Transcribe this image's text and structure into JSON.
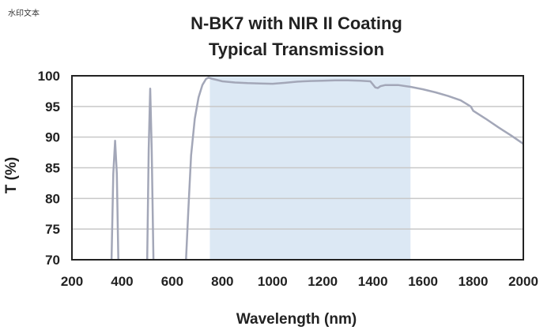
{
  "watermark": "水印文本",
  "chart_data": {
    "type": "line",
    "title_line1": "N-BK7 with NIR II Coating",
    "title_line2": "Typical Transmission",
    "xlabel": "Wavelength (nm)",
    "ylabel": "T (%)",
    "xlim": [
      200,
      2000
    ],
    "ylim": [
      70,
      100
    ],
    "x_ticks": [
      200,
      400,
      600,
      800,
      1000,
      1200,
      1400,
      1600,
      1800,
      2000
    ],
    "y_ticks": [
      70,
      75,
      80,
      85,
      90,
      95,
      100
    ],
    "grid": true,
    "band": {
      "x_start": 750,
      "x_end": 1550,
      "color": "#dce8f4"
    },
    "line_color": "#a3a7b8",
    "series": [
      {
        "segments": [
          [
            [
              358,
              70
            ],
            [
              365,
              84
            ],
            [
              372,
              89.4
            ],
            [
              379,
              84
            ],
            [
              385,
              70
            ]
          ],
          [
            [
              500,
              70
            ],
            [
              506,
              88
            ],
            [
              512,
              97.9
            ],
            [
              518,
              88
            ],
            [
              525,
              70
            ]
          ],
          [
            [
              655,
              70
            ],
            [
              664,
              78
            ],
            [
              675,
              87
            ],
            [
              690,
              93
            ],
            [
              705,
              96.5
            ],
            [
              720,
              98.5
            ],
            [
              735,
              99.5
            ],
            [
              745,
              99.7
            ],
            [
              760,
              99.5
            ],
            [
              780,
              99.3
            ],
            [
              800,
              99.1
            ],
            [
              850,
              98.9
            ],
            [
              900,
              98.8
            ],
            [
              950,
              98.75
            ],
            [
              1000,
              98.7
            ],
            [
              1050,
              98.85
            ],
            [
              1100,
              99.05
            ],
            [
              1150,
              99.15
            ],
            [
              1200,
              99.2
            ],
            [
              1250,
              99.25
            ],
            [
              1300,
              99.25
            ],
            [
              1350,
              99.2
            ],
            [
              1390,
              99.1
            ],
            [
              1400,
              98.6
            ],
            [
              1410,
              98.1
            ],
            [
              1420,
              98.0
            ],
            [
              1430,
              98.3
            ],
            [
              1450,
              98.5
            ],
            [
              1500,
              98.5
            ],
            [
              1550,
              98.2
            ],
            [
              1600,
              97.8
            ],
            [
              1650,
              97.3
            ],
            [
              1700,
              96.7
            ],
            [
              1750,
              96.0
            ],
            [
              1790,
              95.0
            ],
            [
              1800,
              94.3
            ],
            [
              1850,
              93.0
            ],
            [
              1900,
              91.6
            ],
            [
              1950,
              90.3
            ],
            [
              2000,
              88.9
            ]
          ]
        ]
      }
    ]
  }
}
